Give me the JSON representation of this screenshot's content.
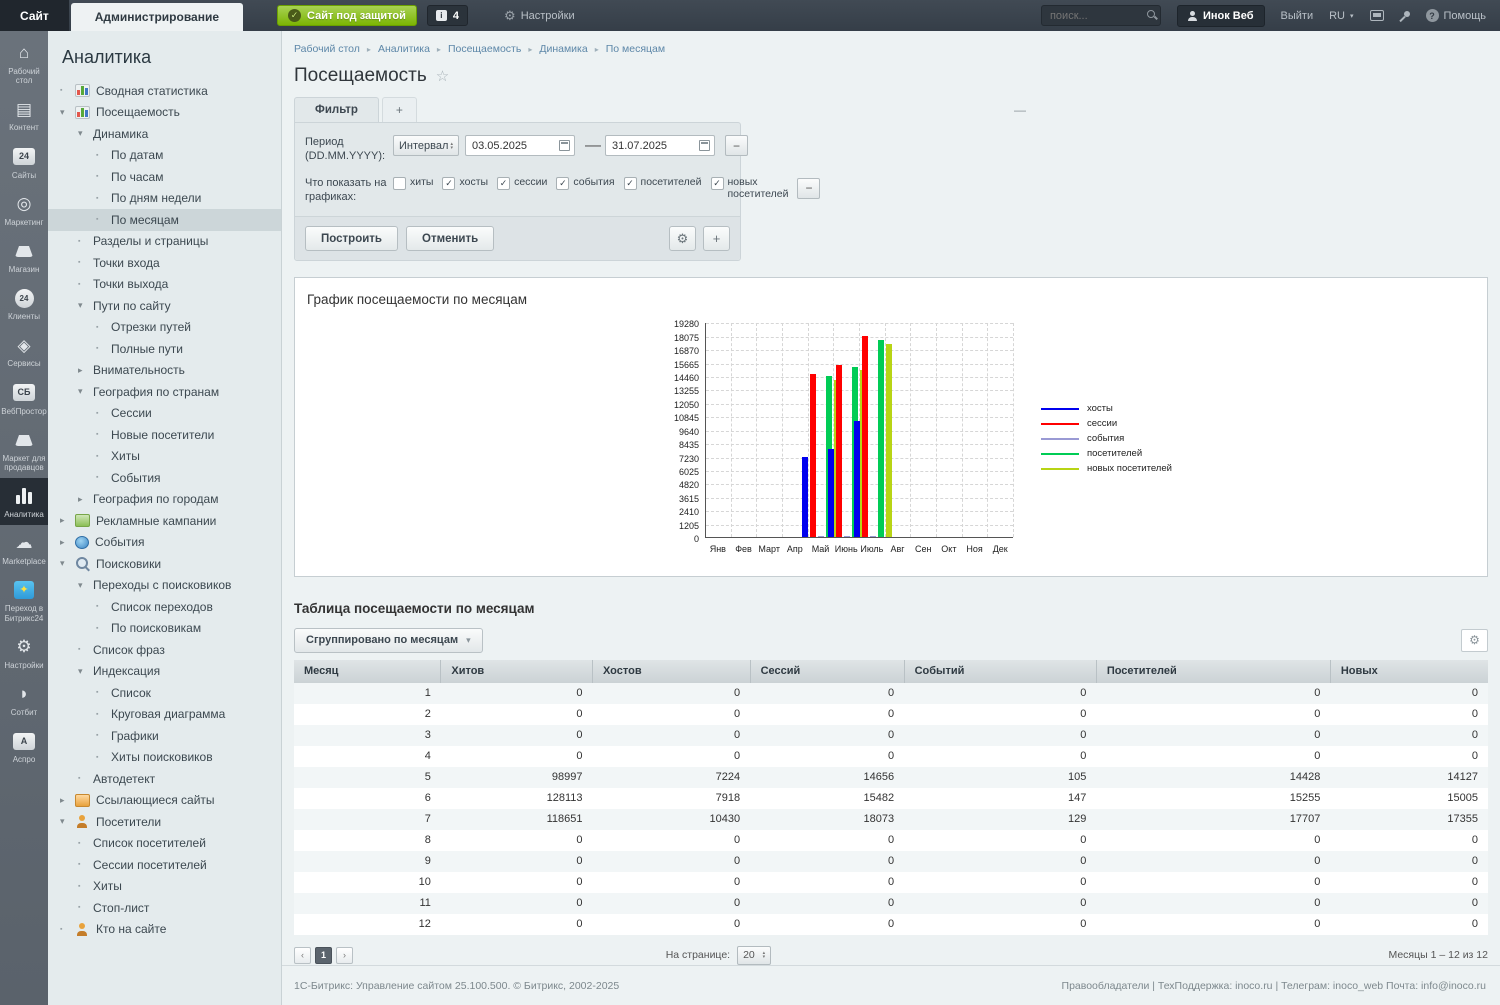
{
  "topbar": {
    "site_tab": "Сайт",
    "admin_tab": "Администрирование",
    "protected_button": "Сайт под защитой",
    "notifications_count": "4",
    "settings_label": "Настройки",
    "search_placeholder": "поиск...",
    "user_name": "Инок Веб",
    "logout_label": "Выйти",
    "lang": "RU",
    "help_label": "Помощь"
  },
  "glyphs": {
    "star": "☆",
    "collapse": "—",
    "plus": "+",
    "minus": "−",
    "caret": "▾",
    "prev": "‹",
    "next": "›",
    "gear": "⚙",
    "check": "✓",
    "date_sep": "—",
    "lang_caret": "▾",
    "help_q": "?"
  },
  "rail": {
    "items": [
      {
        "label": "Рабочий стол",
        "icon": "desktop",
        "glyph": "⌂",
        "kind": "glyph"
      },
      {
        "label": "Контент",
        "icon": "content",
        "glyph": "▤",
        "kind": "glyph"
      },
      {
        "label": "Сайты",
        "icon": "sites",
        "glyph": "24",
        "kind": "boxtext"
      },
      {
        "label": "Маркетинг",
        "icon": "marketing",
        "glyph": "◎",
        "kind": "glyph"
      },
      {
        "label": "Магазин",
        "icon": "shop",
        "glyph": "",
        "kind": "basket"
      },
      {
        "label": "Клиенты",
        "icon": "clients",
        "glyph": "24",
        "kind": "circletext"
      },
      {
        "label": "Сервисы",
        "icon": "services",
        "glyph": "◈",
        "kind": "glyph"
      },
      {
        "label": "ВебПростор",
        "icon": "webprostor",
        "glyph": "СБ",
        "kind": "boxtext"
      },
      {
        "label": "Маркет для продавцов",
        "icon": "sellers-market",
        "glyph": "",
        "kind": "basket"
      },
      {
        "label": "Аналитика",
        "icon": "analytics",
        "glyph": "",
        "kind": "bars",
        "active": true
      },
      {
        "label": "Marketplace",
        "icon": "marketplace",
        "glyph": "☁",
        "kind": "glyph"
      },
      {
        "label": "Переход в Битрикс24",
        "icon": "bitrix24",
        "glyph": "✦",
        "kind": "b24"
      },
      {
        "label": "Настройки",
        "icon": "settings",
        "glyph": "⚙",
        "kind": "glyph"
      },
      {
        "label": "Сотбит",
        "icon": "sotbit",
        "glyph": "◗",
        "kind": "glyph"
      },
      {
        "label": "Аспро",
        "icon": "aspro",
        "glyph": "A",
        "kind": "boxtext"
      }
    ]
  },
  "sidebar": {
    "title": "Аналитика",
    "items": [
      {
        "label": "Сводная статистика",
        "level": 1,
        "marker": "dot",
        "icon": "chart"
      },
      {
        "label": "Посещаемость",
        "level": 1,
        "marker": "open",
        "icon": "chart"
      },
      {
        "label": "Динамика",
        "level": 2,
        "marker": "open"
      },
      {
        "label": "По датам",
        "level": 3,
        "marker": "dot"
      },
      {
        "label": "По часам",
        "level": 3,
        "marker": "dot"
      },
      {
        "label": "По дням недели",
        "level": 3,
        "marker": "dot"
      },
      {
        "label": "По месяцам",
        "level": 3,
        "marker": "dot",
        "selected": true
      },
      {
        "label": "Разделы и страницы",
        "level": 2,
        "marker": "dot"
      },
      {
        "label": "Точки входа",
        "level": 2,
        "marker": "dot"
      },
      {
        "label": "Точки выхода",
        "level": 2,
        "marker": "dot"
      },
      {
        "label": "Пути по сайту",
        "level": 2,
        "marker": "open"
      },
      {
        "label": "Отрезки путей",
        "level": 3,
        "marker": "dot"
      },
      {
        "label": "Полные пути",
        "level": 3,
        "marker": "dot"
      },
      {
        "label": "Внимательность",
        "level": 2,
        "marker": "closed"
      },
      {
        "label": "География по странам",
        "level": 2,
        "marker": "open"
      },
      {
        "label": "Сессии",
        "level": 3,
        "marker": "dot"
      },
      {
        "label": "Новые посетители",
        "level": 3,
        "marker": "dot"
      },
      {
        "label": "Хиты",
        "level": 3,
        "marker": "dot"
      },
      {
        "label": "События",
        "level": 3,
        "marker": "dot"
      },
      {
        "label": "География по городам",
        "level": 2,
        "marker": "closed"
      },
      {
        "label": "Рекламные кампании",
        "level": 1,
        "marker": "closed",
        "icon": "doc"
      },
      {
        "label": "События",
        "level": 1,
        "marker": "closed",
        "icon": "globe"
      },
      {
        "label": "Поисковики",
        "level": 1,
        "marker": "open",
        "icon": "magnifier"
      },
      {
        "label": "Переходы с поисковиков",
        "level": 2,
        "marker": "open"
      },
      {
        "label": "Список переходов",
        "level": 3,
        "marker": "dot"
      },
      {
        "label": "По поисковикам",
        "level": 3,
        "marker": "dot"
      },
      {
        "label": "Список фраз",
        "level": 2,
        "marker": "dot"
      },
      {
        "label": "Индексация",
        "level": 2,
        "marker": "open"
      },
      {
        "label": "Список",
        "level": 3,
        "marker": "dot"
      },
      {
        "label": "Круговая диаграмма",
        "level": 3,
        "marker": "dot"
      },
      {
        "label": "Графики",
        "level": 3,
        "marker": "dot"
      },
      {
        "label": "Хиты поисковиков",
        "level": 3,
        "marker": "dot"
      },
      {
        "label": "Автодетект",
        "level": 2,
        "marker": "dot"
      },
      {
        "label": "Ссылающиеся сайты",
        "level": 1,
        "marker": "closed",
        "icon": "box"
      },
      {
        "label": "Посетители",
        "level": 1,
        "marker": "open",
        "icon": "people"
      },
      {
        "label": "Список посетителей",
        "level": 2,
        "marker": "dot"
      },
      {
        "label": "Сессии посетителей",
        "level": 2,
        "marker": "dot"
      },
      {
        "label": "Хиты",
        "level": 2,
        "marker": "dot"
      },
      {
        "label": "Стоп-лист",
        "level": 2,
        "marker": "dot"
      },
      {
        "label": "Кто на сайте",
        "level": 1,
        "marker": "dot",
        "icon": "people"
      }
    ]
  },
  "breadcrumb": {
    "items": [
      "Рабочий стол",
      "Аналитика",
      "Посещаемость",
      "Динамика",
      "По месяцам"
    ]
  },
  "page": {
    "title": "Посещаемость"
  },
  "filter": {
    "tab_label": "Фильтр",
    "period_label": "Период (DD.MM.YYYY):",
    "interval_value": "Интервал",
    "date_from": "03.05.2025",
    "date_to": "31.07.2025",
    "show_label": "Что показать на графиках:",
    "checkboxes": [
      {
        "label": "хиты",
        "checked": false
      },
      {
        "label": "хосты",
        "checked": true
      },
      {
        "label": "сессии",
        "checked": true
      },
      {
        "label": "события",
        "checked": true
      },
      {
        "label": "посетителей",
        "checked": true
      },
      {
        "label": "новых посетителей",
        "checked": true
      }
    ],
    "build_button": "Построить",
    "cancel_button": "Отменить"
  },
  "chart": {
    "title": "График посещаемости по месяцам"
  },
  "chart_data": {
    "type": "bar",
    "title": "График посещаемости по месяцам",
    "categories": [
      "Янв",
      "Фев",
      "Март",
      "Апр",
      "Май",
      "Июнь",
      "Июль",
      "Авг",
      "Сен",
      "Окт",
      "Ноя",
      "Дек"
    ],
    "series": [
      {
        "name": "хосты",
        "key": "hosts",
        "color": "#0000ee",
        "values": [
          0,
          0,
          0,
          0,
          7224,
          7918,
          10430,
          0,
          0,
          0,
          0,
          0
        ]
      },
      {
        "name": "сессии",
        "key": "sessions",
        "color": "#ff0000",
        "values": [
          0,
          0,
          0,
          0,
          14656,
          15482,
          18073,
          0,
          0,
          0,
          0,
          0
        ]
      },
      {
        "name": "события",
        "key": "events",
        "color": "#9a9ad4",
        "values": [
          0,
          0,
          0,
          0,
          105,
          147,
          129,
          0,
          0,
          0,
          0,
          0
        ]
      },
      {
        "name": "посетителей",
        "key": "visitors",
        "color": "#00cc55",
        "values": [
          0,
          0,
          0,
          0,
          14428,
          15255,
          17707,
          0,
          0,
          0,
          0,
          0
        ]
      },
      {
        "name": "новых посетителей",
        "key": "new-visitors",
        "color": "#b8d414",
        "values": [
          0,
          0,
          0,
          0,
          14127,
          15005,
          17355,
          0,
          0,
          0,
          0,
          0
        ]
      }
    ],
    "ylim": [
      0,
      19280
    ],
    "ytick_step": 1205,
    "grid": true,
    "legend_position": "right"
  },
  "table": {
    "title": "Таблица посещаемости по месяцам",
    "group_button": "Сгруппировано по месяцам",
    "headers": [
      "Месяц",
      "Хитов",
      "Хостов",
      "Сессий",
      "Событий",
      "Посетителей",
      "Новых"
    ],
    "rows": [
      [
        "1",
        "0",
        "0",
        "0",
        "0",
        "0",
        "0"
      ],
      [
        "2",
        "0",
        "0",
        "0",
        "0",
        "0",
        "0"
      ],
      [
        "3",
        "0",
        "0",
        "0",
        "0",
        "0",
        "0"
      ],
      [
        "4",
        "0",
        "0",
        "0",
        "0",
        "0",
        "0"
      ],
      [
        "5",
        "98997",
        "7224",
        "14656",
        "105",
        "14428",
        "14127"
      ],
      [
        "6",
        "128113",
        "7918",
        "15482",
        "147",
        "15255",
        "15005"
      ],
      [
        "7",
        "118651",
        "10430",
        "18073",
        "129",
        "17707",
        "17355"
      ],
      [
        "8",
        "0",
        "0",
        "0",
        "0",
        "0",
        "0"
      ],
      [
        "9",
        "0",
        "0",
        "0",
        "0",
        "0",
        "0"
      ],
      [
        "10",
        "0",
        "0",
        "0",
        "0",
        "0",
        "0"
      ],
      [
        "11",
        "0",
        "0",
        "0",
        "0",
        "0",
        "0"
      ],
      [
        "12",
        "0",
        "0",
        "0",
        "0",
        "0",
        "0"
      ]
    ]
  },
  "pagination": {
    "current_page": "1",
    "per_page_label": "На странице:",
    "per_page_value": "20",
    "total_text": "Месяцы 1 – 12 из 12"
  },
  "footer": {
    "left": "1С-Битрикс: Управление сайтом 25.100.500. © Битрикс, 2002-2025",
    "right": "Правообладатели  |  ТехПоддержка: inoco.ru | Телеграм: inoco_web Почта: info@inoco.ru"
  }
}
